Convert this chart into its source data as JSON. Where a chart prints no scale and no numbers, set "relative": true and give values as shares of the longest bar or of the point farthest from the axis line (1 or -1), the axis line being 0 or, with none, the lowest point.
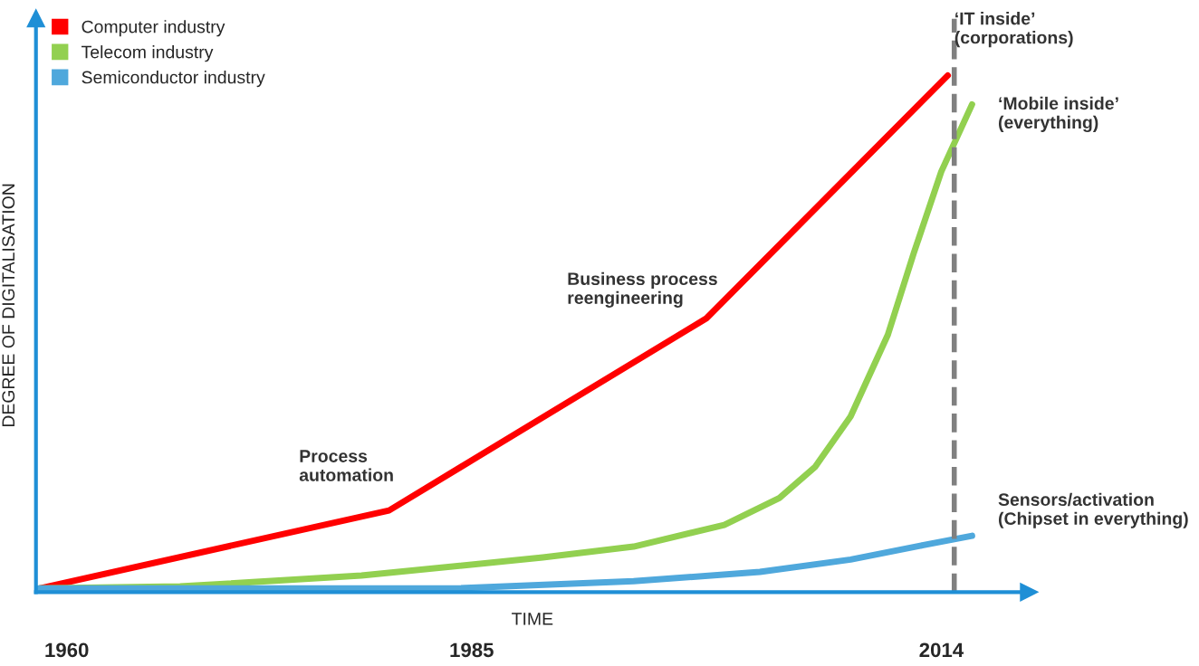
{
  "chart_data": {
    "type": "line",
    "relative": true,
    "xlabel": "TIME",
    "ylabel": "DEGREE OF DIGITALISATION",
    "xlim": [
      1958.1,
      2019.4
    ],
    "xticks": [
      1960,
      1985,
      2014
    ],
    "series": [
      {
        "name": "Computer industry",
        "color": "#ff0000",
        "x": [
          1958.3,
          1979.9,
          1999.5,
          2014.4
        ],
        "values": [
          0.007,
          0.158,
          0.53,
          1.0
        ]
      },
      {
        "name": "Telecom industry",
        "color": "#92d050",
        "x": [
          1958.3,
          1967.0,
          1978.2,
          1989.4,
          1995.0,
          2000.6,
          2004.0,
          2006.2,
          2008.4,
          2010.7,
          2012.3,
          2014.0,
          2015.9
        ],
        "values": [
          0.007,
          0.011,
          0.032,
          0.067,
          0.088,
          0.13,
          0.182,
          0.242,
          0.34,
          0.498,
          0.656,
          0.814,
          0.944
        ]
      },
      {
        "name": "Semiconductor industry",
        "color": "#4fa8dc",
        "x": [
          1958.3,
          1983.8,
          1995.0,
          2002.8,
          2008.4,
          2012.9,
          2015.9
        ],
        "values": [
          0.007,
          0.007,
          0.021,
          0.039,
          0.063,
          0.091,
          0.109
        ]
      }
    ],
    "ref_lines": [
      {
        "axis": "x",
        "value": 2014.8,
        "label": null,
        "color": "#808080",
        "line_style": "dashed"
      }
    ],
    "annotations": [
      "Process\nautomation",
      "Business process\nreengineering",
      "‘IT inside’\n(corporations)",
      "‘Mobile inside’\n(everything)",
      "Sensors/activation\n(Chipset in everything)"
    ],
    "legend": "top left",
    "grid": false,
    "marker": "none",
    "line_style": "solid"
  }
}
